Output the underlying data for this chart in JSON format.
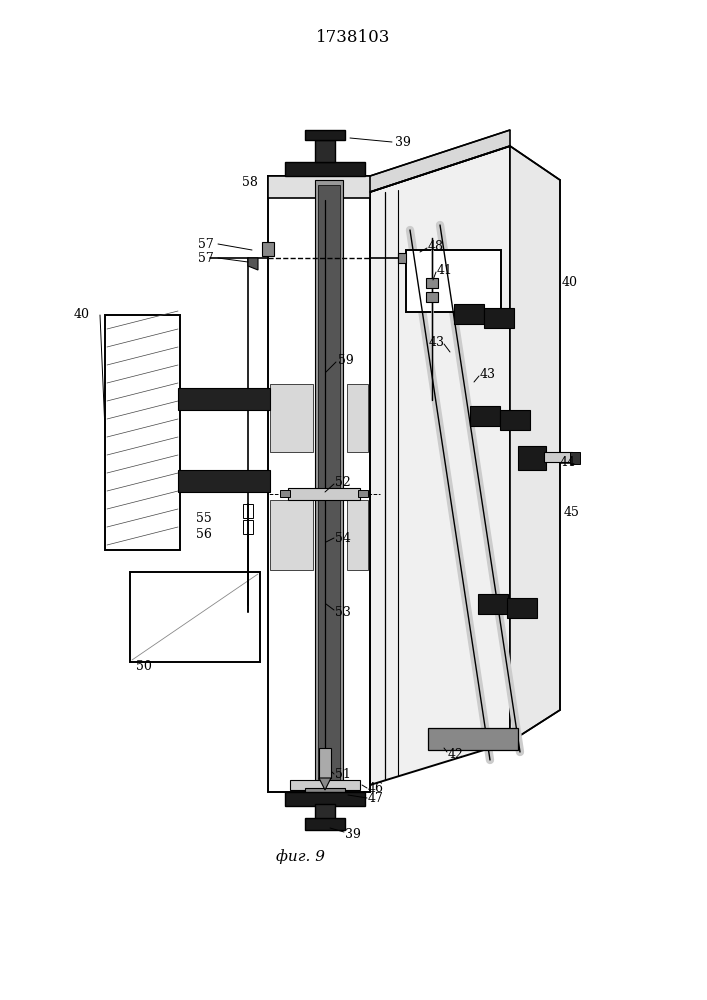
{
  "title": "1738103",
  "caption": "фиг. 9",
  "bg_color": "#ffffff",
  "fig_w": 7.07,
  "fig_h": 10.0,
  "dpi": 100
}
